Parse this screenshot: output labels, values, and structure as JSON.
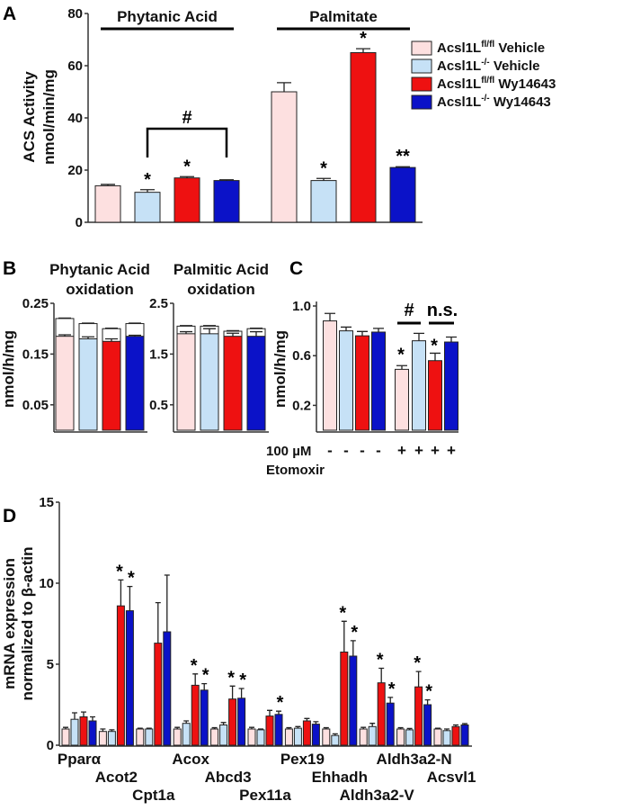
{
  "colors": {
    "ctrl_vehicle": "#fde0e0",
    "ko_vehicle": "#c6e1f6",
    "ctrl_wy": "#ee1111",
    "ko_wy": "#0b12c8"
  },
  "legend": [
    {
      "base": "Acsl1L",
      "sup": "fl/fl",
      "suffix": " Vehicle",
      "color_key": "ctrl_vehicle"
    },
    {
      "base": "Acsl1L",
      "sup": "-/-",
      "suffix": " Vehicle",
      "color_key": "ko_vehicle"
    },
    {
      "base": "Acsl1L",
      "sup": "fl/fl",
      "suffix": " Wy14643",
      "color_key": "ctrl_wy"
    },
    {
      "base": "Acsl1L",
      "sup": "-/-",
      "suffix": " Wy14643",
      "color_key": "ko_wy"
    }
  ],
  "chart_data": [
    {
      "panel": "A",
      "type": "bar",
      "ylabel": [
        "ACS Activity",
        "nmol/min/mg"
      ],
      "ylim": [
        0,
        80
      ],
      "yticks": [
        "0",
        "20",
        "40",
        "60",
        "80"
      ],
      "groups": [
        {
          "label": "Phytanic Acid",
          "values": [
            14,
            11.5,
            17,
            16
          ],
          "errors": [
            0.5,
            1,
            0.5,
            0.3
          ],
          "sig": [
            "",
            "*",
            "*",
            ""
          ]
        },
        {
          "label": "Palmitate",
          "values": [
            50,
            16,
            65,
            21
          ],
          "errors": [
            3.5,
            0.8,
            1.5,
            0.3
          ],
          "sig": [
            "",
            "*",
            "*",
            "**"
          ]
        }
      ],
      "bracket_label": "#"
    },
    {
      "panel": "B",
      "type": "bar",
      "title": [
        "Phytanic Acid",
        "oxidation"
      ],
      "ylabel": "nmol/h/mg",
      "ylim": [
        0,
        0.25
      ],
      "yticks": [
        "0.05",
        "0.15",
        "0.25"
      ],
      "values": [
        0.185,
        0.18,
        0.175,
        0.185
      ],
      "errors": [
        0.003,
        0.004,
        0.005,
        0.002
      ],
      "totals": [
        0.22,
        0.21,
        0.2,
        0.21
      ]
    },
    {
      "panel": "B2",
      "type": "bar",
      "title": [
        "Palmitic Acid",
        "oxidation"
      ],
      "ylim": [
        0,
        2.5
      ],
      "yticks": [
        "0.5",
        "1.5",
        "2.5"
      ],
      "values": [
        1.9,
        1.9,
        1.85,
        1.85
      ],
      "errors": [
        0.04,
        0.1,
        0.06,
        0.09
      ],
      "totals": [
        2.05,
        2.05,
        1.95,
        2.0
      ]
    },
    {
      "panel": "C",
      "type": "bar",
      "ylabel": "nmol/h/mg",
      "ylim": [
        0,
        1.0
      ],
      "yticks": [
        "0.2",
        "0.6",
        "1.0"
      ],
      "values": [
        0.88,
        0.8,
        0.76,
        0.79,
        0.49,
        0.72,
        0.56,
        0.71
      ],
      "errors": [
        0.06,
        0.03,
        0.035,
        0.03,
        0.03,
        0.06,
        0.06,
        0.04
      ],
      "sig": [
        "",
        "",
        "",
        "",
        "*",
        "",
        "*",
        ""
      ],
      "etomoxir": [
        "-",
        "-",
        "-",
        "-",
        "+",
        "+",
        "+",
        "+"
      ],
      "etomoxir_label": [
        "100 µM",
        "Etomoxir"
      ],
      "comparisons": [
        "#",
        "n.s."
      ]
    },
    {
      "panel": "D",
      "type": "bar",
      "ylabel": [
        "mRNA expression",
        "normalized to β-actin"
      ],
      "ylim": [
        0,
        15
      ],
      "yticks": [
        "0",
        "5",
        "10",
        "15"
      ],
      "categories": [
        "Pparα",
        "Acot2",
        "Cpt1a",
        "Acox",
        "Abcd3",
        "Pex11a",
        "Pex19",
        "Ehhadh",
        "Aldh3a2-V",
        "Aldh3a2-N",
        "Acsvl1"
      ],
      "series": [
        {
          "name": "Acsl1L fl/fl Vehicle",
          "values": [
            1.0,
            0.85,
            1.0,
            1.0,
            1.0,
            1.0,
            1.0,
            1.0,
            1.0,
            1.0,
            1.0
          ],
          "errors": [
            0.1,
            0.15,
            0.05,
            0.1,
            0.08,
            0.1,
            0.08,
            0.08,
            0.1,
            0.08,
            0.05
          ]
        },
        {
          "name": "Acsl1L -/- Vehicle",
          "values": [
            1.6,
            0.85,
            1.0,
            1.35,
            1.25,
            0.95,
            1.05,
            0.6,
            1.15,
            0.95,
            0.9
          ],
          "errors": [
            0.4,
            0.1,
            0.05,
            0.15,
            0.15,
            0.05,
            0.1,
            0.1,
            0.2,
            0.08,
            0.1
          ]
        },
        {
          "name": "Acsl1L fl/fl Wy14643",
          "values": [
            1.75,
            8.6,
            6.3,
            3.7,
            2.85,
            1.8,
            1.5,
            5.75,
            3.85,
            3.6,
            1.15
          ],
          "errors": [
            0.3,
            1.6,
            2.5,
            0.7,
            0.8,
            0.35,
            0.15,
            1.9,
            0.9,
            0.95,
            0.1
          ]
        },
        {
          "name": "Acsl1L -/- Wy14643",
          "values": [
            1.5,
            8.3,
            7.0,
            3.4,
            2.9,
            1.9,
            1.3,
            5.5,
            2.6,
            2.5,
            1.25
          ],
          "errors": [
            0.25,
            1.5,
            3.5,
            0.4,
            0.6,
            0.2,
            0.15,
            0.95,
            0.35,
            0.3,
            0.08
          ]
        }
      ],
      "sig": [
        [],
        [
          2,
          3
        ],
        [],
        [
          2,
          3
        ],
        [
          2,
          3
        ],
        [
          3
        ],
        [],
        [
          2,
          3
        ],
        [
          2,
          3
        ],
        [
          2,
          3
        ],
        []
      ]
    }
  ]
}
